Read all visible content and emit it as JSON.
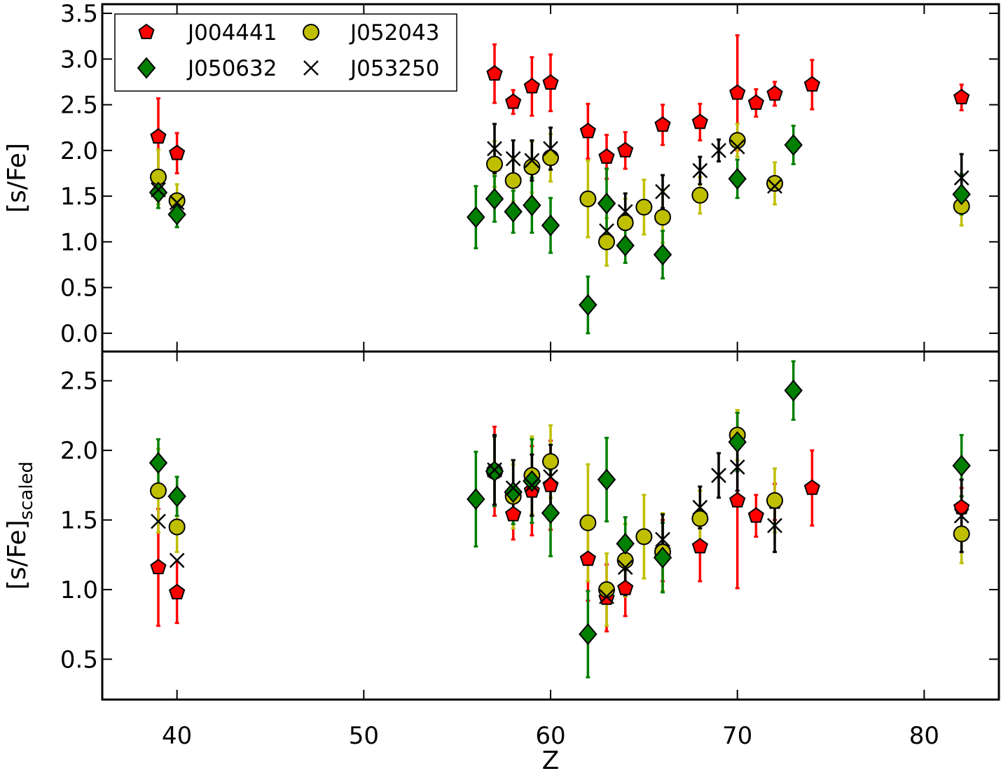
{
  "chart_data": {
    "type": "scatter",
    "xlabel": "Z",
    "xlim": [
      36,
      84
    ],
    "xticks": [
      40,
      50,
      60,
      70,
      80
    ],
    "legend": {
      "placement": "top-left",
      "entries": [
        {
          "series": "J004441",
          "marker": "pentagon",
          "color": "#ff0000"
        },
        {
          "series": "J052043",
          "marker": "circle",
          "color": "#bfbf00"
        },
        {
          "series": "J050632",
          "marker": "diamond",
          "color": "#007f00"
        },
        {
          "series": "J053250",
          "marker": "x",
          "color": "#000000"
        }
      ]
    },
    "panels": [
      {
        "id": "top",
        "ylabel": "[s/Fe]",
        "ylim": [
          -0.2,
          3.6
        ],
        "yticks": [
          "0.0",
          "0.5",
          "1.0",
          "1.5",
          "2.0",
          "2.5",
          "3.0",
          "3.5"
        ],
        "series": [
          {
            "name": "J004441",
            "marker": "pentagon",
            "color": "#ff0000",
            "err_color": "#ff0000",
            "points": [
              [
                39,
                2.15,
                0.42
              ],
              [
                40,
                1.97,
                0.22
              ],
              [
                57,
                2.84,
                0.32
              ],
              [
                58,
                2.53,
                0.13
              ],
              [
                59,
                2.7,
                0.32
              ],
              [
                60,
                2.74,
                0.31
              ],
              [
                62,
                2.21,
                0.3
              ],
              [
                63,
                1.93,
                0.24
              ],
              [
                64,
                2.0,
                0.2
              ],
              [
                66,
                2.28,
                0.22
              ],
              [
                68,
                2.31,
                0.2
              ],
              [
                70,
                2.63,
                0.63
              ],
              [
                71,
                2.52,
                0.15
              ],
              [
                72,
                2.62,
                0.13
              ],
              [
                74,
                2.72,
                0.27
              ],
              [
                82,
                2.58,
                0.14
              ]
            ]
          },
          {
            "name": "J052043",
            "marker": "circle",
            "color": "#bfbf00",
            "err_color": "#bfbf00",
            "points": [
              [
                39,
                1.71,
                0.3
              ],
              [
                40,
                1.45,
                0.18
              ],
              [
                57,
                1.85,
                0.25
              ],
              [
                58,
                1.67,
                0.23
              ],
              [
                59,
                1.82,
                0.28
              ],
              [
                60,
                1.92,
                0.26
              ],
              [
                62,
                1.47,
                0.42
              ],
              [
                63,
                1.0,
                0.26
              ],
              [
                64,
                1.21,
                0.26
              ],
              [
                65,
                1.38,
                0.3
              ],
              [
                66,
                1.27,
                0.28
              ],
              [
                68,
                1.51,
                0.2
              ],
              [
                70,
                2.11,
                0.18
              ],
              [
                72,
                1.64,
                0.23
              ],
              [
                82,
                1.39,
                0.21
              ]
            ]
          },
          {
            "name": "J050632",
            "marker": "diamond",
            "color": "#007f00",
            "err_color": "#007f00",
            "points": [
              [
                39,
                1.54,
                0.17
              ],
              [
                40,
                1.3,
                0.14
              ],
              [
                56,
                1.27,
                0.34
              ],
              [
                57,
                1.47,
                0.25
              ],
              [
                58,
                1.33,
                0.23
              ],
              [
                59,
                1.4,
                0.3
              ],
              [
                60,
                1.18,
                0.3
              ],
              [
                62,
                0.31,
                0.31
              ],
              [
                63,
                1.42,
                0.38
              ],
              [
                64,
                0.96,
                0.19
              ],
              [
                66,
                0.86,
                0.26
              ],
              [
                70,
                1.69,
                0.21
              ],
              [
                73,
                2.06,
                0.21
              ],
              [
                82,
                1.52,
                0.22
              ]
            ]
          },
          {
            "name": "J053250",
            "marker": "x",
            "color": "#000000",
            "err_color": "#000000",
            "points": [
              [
                39,
                1.57,
                0.0
              ],
              [
                40,
                1.43,
                0.0
              ],
              [
                57,
                2.02,
                0.27
              ],
              [
                58,
                1.91,
                0.2
              ],
              [
                59,
                1.89,
                0.22
              ],
              [
                60,
                2.02,
                0.23
              ],
              [
                63,
                1.12,
                0.0
              ],
              [
                64,
                1.33,
                0.2
              ],
              [
                66,
                1.55,
                0.18
              ],
              [
                68,
                1.78,
                0.15
              ],
              [
                69,
                2.0,
                0.12
              ],
              [
                70,
                2.04,
                0.0
              ],
              [
                72,
                1.61,
                0.0
              ],
              [
                82,
                1.7,
                0.26
              ]
            ]
          }
        ]
      },
      {
        "id": "bottom",
        "ylabel": "[s/Fe]",
        "ylabel_subscript": "scaled",
        "ylim": [
          0.21,
          2.71
        ],
        "yticks": [
          "0.5",
          "1.0",
          "1.5",
          "2.0",
          "2.5"
        ],
        "series": [
          {
            "name": "J004441",
            "marker": "pentagon",
            "color": "#ff0000",
            "err_color": "#ff0000",
            "points": [
              [
                39,
                1.16,
                0.42
              ],
              [
                40,
                0.98,
                0.22
              ],
              [
                57,
                1.85,
                0.32
              ],
              [
                58,
                1.54,
                0.18
              ],
              [
                59,
                1.71,
                0.32
              ],
              [
                60,
                1.75,
                0.32
              ],
              [
                62,
                1.22,
                0.3
              ],
              [
                63,
                0.94,
                0.24
              ],
              [
                64,
                1.01,
                0.2
              ],
              [
                66,
                1.28,
                0.22
              ],
              [
                68,
                1.31,
                0.25
              ],
              [
                70,
                1.64,
                0.63
              ],
              [
                71,
                1.53,
                0.15
              ],
              [
                72,
                1.63,
                0.13
              ],
              [
                74,
                1.73,
                0.27
              ],
              [
                82,
                1.59,
                0.14
              ]
            ]
          },
          {
            "name": "J052043",
            "marker": "circle",
            "color": "#bfbf00",
            "err_color": "#bfbf00",
            "points": [
              [
                39,
                1.71,
                0.3
              ],
              [
                40,
                1.45,
                0.18
              ],
              [
                57,
                1.85,
                0.25
              ],
              [
                58,
                1.67,
                0.23
              ],
              [
                59,
                1.82,
                0.28
              ],
              [
                60,
                1.92,
                0.26
              ],
              [
                62,
                1.48,
                0.42
              ],
              [
                63,
                1.0,
                0.26
              ],
              [
                64,
                1.21,
                0.26
              ],
              [
                65,
                1.38,
                0.3
              ],
              [
                66,
                1.27,
                0.28
              ],
              [
                68,
                1.51,
                0.2
              ],
              [
                70,
                2.11,
                0.18
              ],
              [
                72,
                1.64,
                0.23
              ],
              [
                82,
                1.4,
                0.21
              ]
            ]
          },
          {
            "name": "J050632",
            "marker": "diamond",
            "color": "#007f00",
            "err_color": "#007f00",
            "points": [
              [
                39,
                1.91,
                0.17
              ],
              [
                40,
                1.67,
                0.14
              ],
              [
                56,
                1.65,
                0.34
              ],
              [
                57,
                1.85,
                0.25
              ],
              [
                58,
                1.7,
                0.23
              ],
              [
                59,
                1.78,
                0.3
              ],
              [
                60,
                1.55,
                0.31
              ],
              [
                62,
                0.68,
                0.31
              ],
              [
                63,
                1.79,
                0.3
              ],
              [
                64,
                1.33,
                0.19
              ],
              [
                66,
                1.23,
                0.25
              ],
              [
                70,
                2.06,
                0.21
              ],
              [
                73,
                2.43,
                0.21
              ],
              [
                82,
                1.89,
                0.22
              ]
            ]
          },
          {
            "name": "J053250",
            "marker": "x",
            "color": "#000000",
            "err_color": "#000000",
            "points": [
              [
                39,
                1.49,
                0.0
              ],
              [
                40,
                1.21,
                0.0
              ],
              [
                57,
                1.86,
                0.25
              ],
              [
                58,
                1.73,
                0.2
              ],
              [
                59,
                1.75,
                0.22
              ],
              [
                60,
                1.81,
                0.23
              ],
              [
                63,
                0.95,
                0.0
              ],
              [
                64,
                1.16,
                0.2
              ],
              [
                66,
                1.36,
                0.18
              ],
              [
                68,
                1.59,
                0.15
              ],
              [
                69,
                1.82,
                0.16
              ],
              [
                70,
                1.88,
                0.17
              ],
              [
                72,
                1.46,
                0.19
              ],
              [
                82,
                1.53,
                0.26
              ]
            ]
          }
        ]
      }
    ]
  }
}
